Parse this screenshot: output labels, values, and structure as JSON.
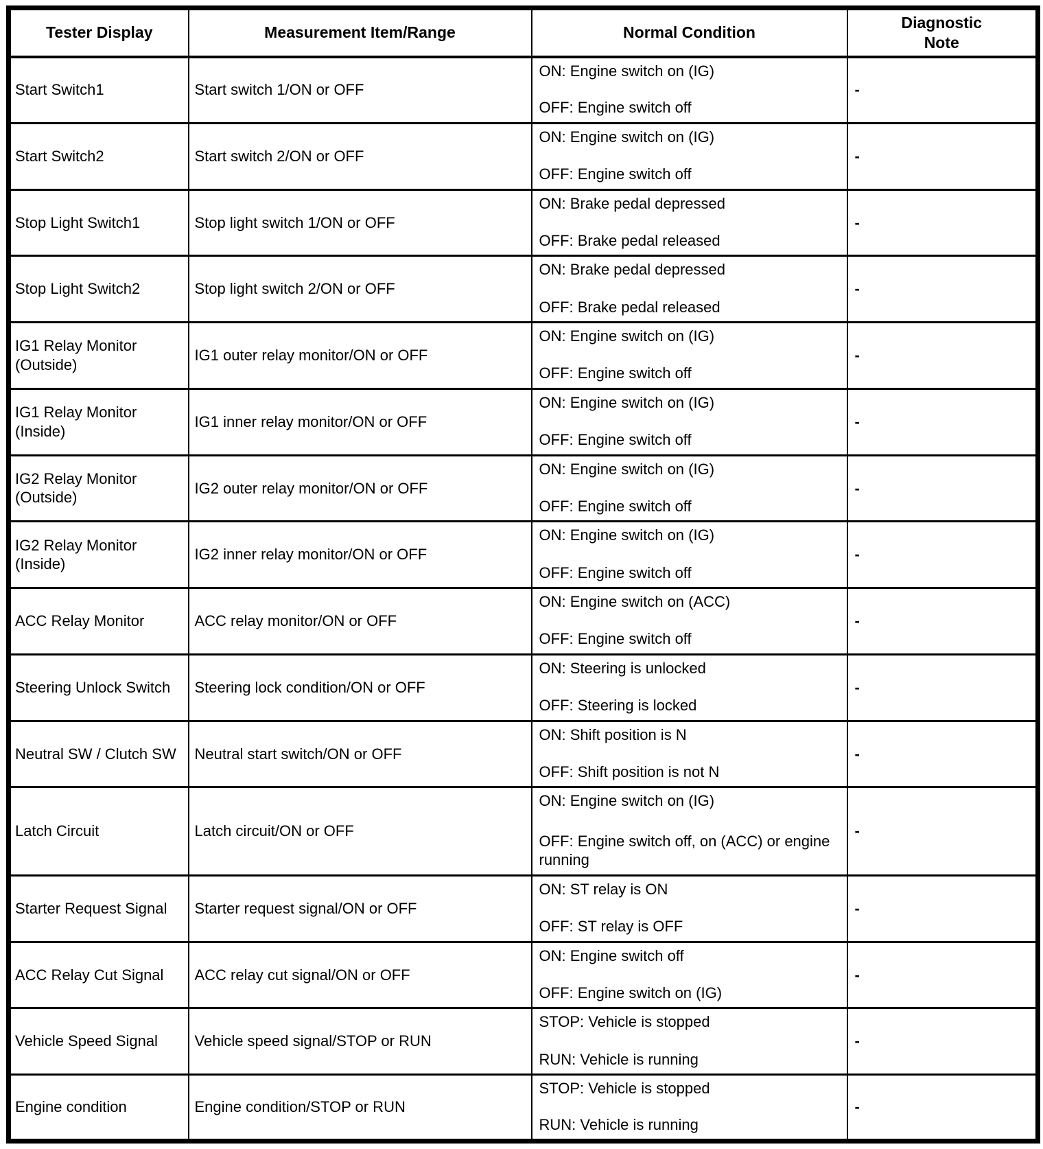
{
  "headers": {
    "tester_display": "Tester Display",
    "measurement": "Measurement Item/Range",
    "normal_condition": "Normal Condition",
    "diagnostic_note": "Diagnostic Note"
  },
  "rows": [
    {
      "display": "Start Switch1",
      "item": "Start switch 1/ON or OFF",
      "on": "ON: Engine switch on (IG)",
      "off": "OFF: Engine switch off",
      "note": "-"
    },
    {
      "display": "Start Switch2",
      "item": "Start switch 2/ON or OFF",
      "on": "ON: Engine switch on (IG)",
      "off": "OFF: Engine switch off",
      "note": "-"
    },
    {
      "display": "Stop Light Switch1",
      "item": "Stop light switch 1/ON or OFF",
      "on": "ON: Brake pedal depressed",
      "off": "OFF: Brake pedal released",
      "note": "-"
    },
    {
      "display": "Stop Light Switch2",
      "item": "Stop light switch 2/ON or OFF",
      "on": "ON: Brake pedal depressed",
      "off": "OFF: Brake pedal released",
      "note": "-"
    },
    {
      "display": "IG1 Relay Monitor (Outside)",
      "item": "IG1 outer relay monitor/ON or OFF",
      "on": "ON: Engine switch on (IG)",
      "off": "OFF: Engine switch off",
      "note": "-"
    },
    {
      "display": "IG1 Relay Monitor (Inside)",
      "item": "IG1 inner relay monitor/ON or OFF",
      "on": "ON: Engine switch on (IG)",
      "off": "OFF: Engine switch off",
      "note": "-"
    },
    {
      "display": "IG2 Relay Monitor (Outside)",
      "item": "IG2 outer relay monitor/ON or OFF",
      "on": "ON: Engine switch on (IG)",
      "off": "OFF: Engine switch off",
      "note": "-"
    },
    {
      "display": "IG2 Relay Monitor (Inside)",
      "item": "IG2 inner relay monitor/ON or OFF",
      "on": "ON: Engine switch on (IG)",
      "off": "OFF: Engine switch off",
      "note": "-"
    },
    {
      "display": "ACC Relay Monitor",
      "item": "ACC relay monitor/ON or OFF",
      "on": "ON: Engine switch on (ACC)",
      "off": "OFF: Engine switch off",
      "note": "-"
    },
    {
      "display": "Steering Unlock Switch",
      "item": "Steering lock condition/ON or OFF",
      "on": "ON: Steering is unlocked",
      "off": "OFF: Steering is locked",
      "note": "-"
    },
    {
      "display": "Neutral SW / Clutch SW",
      "item": "Neutral start switch/ON or OFF",
      "on": "ON: Shift position is N",
      "off": "OFF: Shift position is not N",
      "note": "-"
    },
    {
      "display": "Latch Circuit",
      "item": "Latch circuit/ON or OFF",
      "on": "ON: Engine switch on (IG)",
      "off": "OFF: Engine switch off, on (ACC) or engine running",
      "note": "-"
    },
    {
      "display": "Starter Request Signal",
      "item": "Starter request signal/ON or OFF",
      "on": "ON: ST relay is ON",
      "off": "OFF: ST relay is OFF",
      "note": "-"
    },
    {
      "display": "ACC Relay Cut Signal",
      "item": "ACC relay cut signal/ON or OFF",
      "on": "ON: Engine switch off",
      "off": "OFF: Engine switch on (IG)",
      "note": "-"
    },
    {
      "display": "Vehicle Speed Signal",
      "item": "Vehicle speed signal/STOP or RUN",
      "on": "STOP: Vehicle is stopped",
      "off": "RUN: Vehicle is running",
      "note": "-"
    },
    {
      "display": "Engine condition",
      "item": "Engine condition/STOP or RUN",
      "on": "STOP: Vehicle is stopped",
      "off": "RUN: Vehicle is running",
      "note": "-"
    }
  ]
}
